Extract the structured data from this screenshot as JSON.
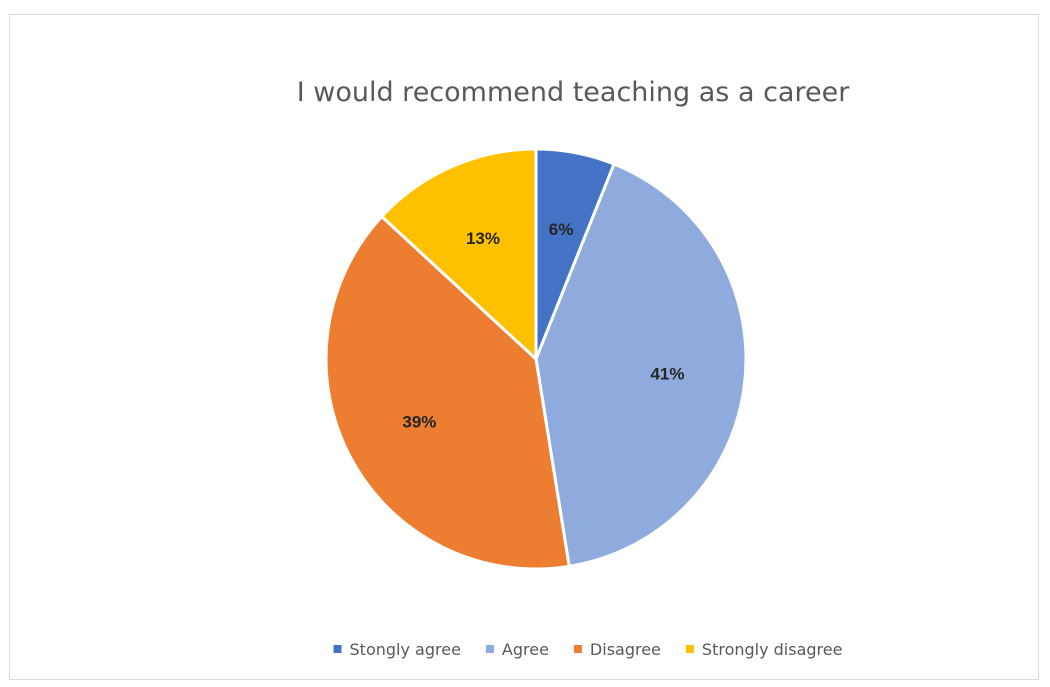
{
  "chart_data": {
    "type": "pie",
    "title": "I would recommend teaching as a career",
    "categories": [
      "Stongly agree",
      "Agree",
      "Disagree",
      "Strongly disagree"
    ],
    "values": [
      6,
      41,
      39,
      13
    ],
    "labels": [
      "6%",
      "41%",
      "39%",
      "13%"
    ],
    "colors": [
      "#4472C4",
      "#8FAADC",
      "#ED7D31",
      "#FFC000"
    ],
    "legend_position": "bottom",
    "start_angle_deg": 0,
    "direction": "clockwise"
  }
}
